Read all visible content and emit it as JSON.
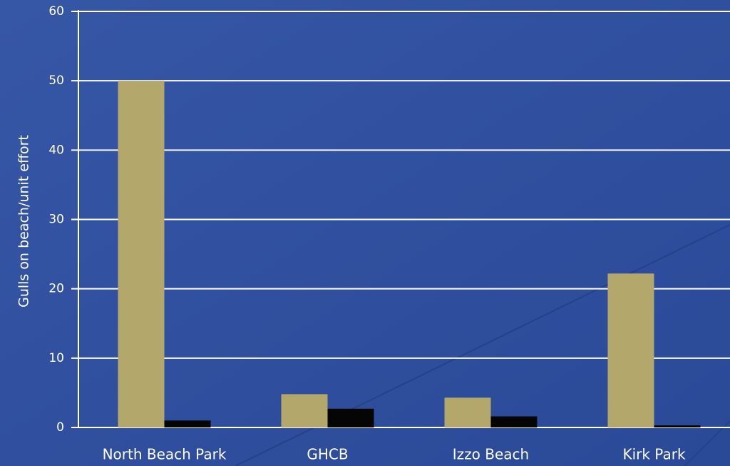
{
  "chart_data": {
    "type": "bar",
    "y_label": "Gulls on beach/unit effort",
    "categories": [
      "North Beach Park",
      "GHCB",
      "Izzo Beach",
      "Kirk Park"
    ],
    "series": [
      {
        "color": "#b4a76b",
        "values": [
          50,
          4.8,
          4.3,
          22.2
        ]
      },
      {
        "color": "#050505",
        "values": [
          1,
          2.7,
          1.6,
          0.3
        ]
      }
    ],
    "ylim": [
      0,
      60
    ],
    "yticks": [
      0,
      10,
      20,
      30,
      40,
      50,
      60
    ],
    "grid": true
  }
}
